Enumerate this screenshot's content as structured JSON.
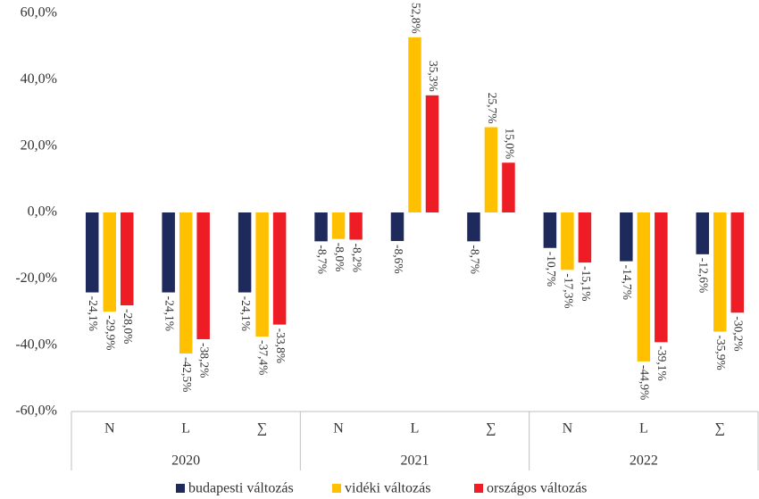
{
  "chart_data": {
    "type": "bar",
    "categories": [
      "N",
      "L",
      "∑",
      "N",
      "L",
      "∑",
      "N",
      "L",
      "∑"
    ],
    "groups": [
      "2020",
      "2021",
      "2022"
    ],
    "series": [
      {
        "name": "budapesti változás",
        "color": "#1f2a5c",
        "values": [
          -24.1,
          -24.1,
          -24.1,
          -8.7,
          -8.6,
          -8.7,
          -10.7,
          -14.7,
          -12.6
        ],
        "value_labels": [
          "-24,1%",
          "-24,1%",
          "-24,1%",
          "-8,7%",
          "-8,6%",
          "-8,7%",
          "-10,7%",
          "-14,7%",
          "-12,6%"
        ]
      },
      {
        "name": "vidéki változás",
        "color": "#ffc000",
        "values": [
          -29.9,
          -42.5,
          -37.4,
          -8.0,
          52.8,
          25.7,
          -17.3,
          -44.9,
          -35.9
        ],
        "value_labels": [
          "-29,9%",
          "-42,5%",
          "-37,4%",
          "-8,0%",
          "52,8%",
          "25,7%",
          "-17,3%",
          "-44,9%",
          "-35,9%"
        ]
      },
      {
        "name": "országos változás",
        "color": "#ee1c25",
        "values": [
          -28.0,
          -38.2,
          -33.8,
          -8.2,
          35.3,
          15.0,
          -15.1,
          -39.1,
          -30.2
        ],
        "value_labels": [
          "-28,0%",
          "-38,2%",
          "-33,8%",
          "-8,2%",
          "35,3%",
          "15,0%",
          "-15,1%",
          "-39,1%",
          "-30,2%"
        ]
      }
    ],
    "ylim": [
      -60,
      60
    ],
    "yticks": [
      {
        "value": -60,
        "label": "-60,0%"
      },
      {
        "value": -40,
        "label": "-40,0%"
      },
      {
        "value": -20,
        "label": "-20,0%"
      },
      {
        "value": 0,
        "label": "0,0%"
      },
      {
        "value": 20,
        "label": "20,0%"
      },
      {
        "value": 40,
        "label": "40,0%"
      },
      {
        "value": 60,
        "label": "60,0%"
      }
    ],
    "grid": false,
    "legend": "bottom"
  }
}
